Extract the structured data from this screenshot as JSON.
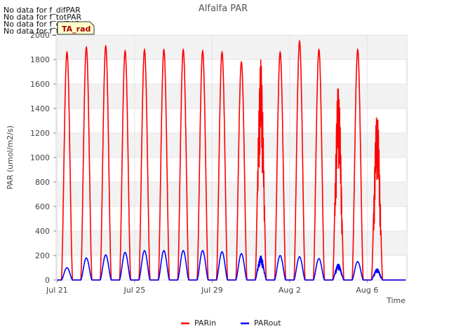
{
  "chart_data": {
    "type": "line",
    "title": "Alfalfa PAR",
    "xlabel": "Time",
    "ylabel": "PAR (umol/m2/s)",
    "ylim": [
      0,
      2000
    ],
    "yticks": [
      0,
      200,
      400,
      600,
      800,
      1000,
      1200,
      1400,
      1600,
      1800,
      2000
    ],
    "xlim_days": [
      -0.05,
      18.05
    ],
    "xticks": [
      {
        "day": 0,
        "label": "Jul 21"
      },
      {
        "day": 4,
        "label": "Jul 25"
      },
      {
        "day": 8,
        "label": "Jul 29"
      },
      {
        "day": 12,
        "label": "Aug 2"
      },
      {
        "day": 16,
        "label": "Aug 6"
      }
    ],
    "grid": true,
    "series": [
      {
        "name": "PARin",
        "color": "#ff0000",
        "daily_peaks": [
          1860,
          1900,
          1910,
          1870,
          1880,
          1880,
          1880,
          1870,
          1860,
          1780,
          1800,
          1860,
          1950,
          1880,
          1600,
          1880,
          1380
        ]
      },
      {
        "name": "PARout",
        "color": "#0000ff",
        "daily_peaks": [
          100,
          180,
          205,
          225,
          240,
          240,
          240,
          240,
          230,
          215,
          200,
          200,
          190,
          175,
          135,
          150,
          95
        ]
      }
    ],
    "day_start_offset": [
      0.2,
      1.2,
      2.2,
      3.2,
      4.2,
      5.2,
      6.2,
      7.2,
      8.2,
      9.2,
      10.2,
      11.2,
      12.2,
      13.2,
      14.2,
      15.2,
      16.2
    ],
    "no_data_messages": [
      "No data for f_difPAR",
      "No data for f_totPAR",
      "No data for f_difPAR",
      "No data for f_totPAR"
    ],
    "tag_label": "TA_rad"
  }
}
